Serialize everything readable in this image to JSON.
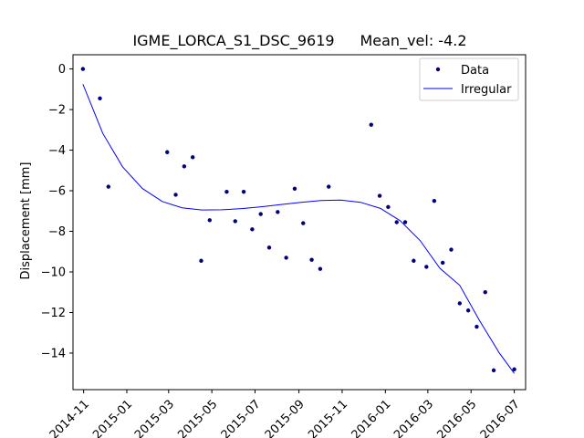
{
  "chart_data": {
    "type": "scatter",
    "title": "IGME_LORCA_S1_DSC_9619",
    "subtitle": "Mean_vel: -4.2",
    "xlabel": "",
    "ylabel": "Displacement [mm]",
    "xlim": [
      "2014-10-17",
      "2016-07-17"
    ],
    "ylim": [
      -15.8,
      0.7
    ],
    "grid": false,
    "legend_position": "top-right",
    "x_ticks": [
      "2014-11",
      "2015-01",
      "2015-03",
      "2015-05",
      "2015-07",
      "2015-09",
      "2015-11",
      "2016-01",
      "2016-03",
      "2016-05",
      "2016-07"
    ],
    "y_ticks": [
      0,
      -2,
      -4,
      -6,
      -8,
      -10,
      -12,
      -14
    ],
    "series": [
      {
        "name": "Data",
        "kind": "points",
        "color": "#000080",
        "x": [
          "2014-10-31",
          "2014-11-24",
          "2014-12-06",
          "2015-02-27",
          "2015-03-11",
          "2015-03-23",
          "2015-04-04",
          "2015-04-16",
          "2015-04-28",
          "2015-05-22",
          "2015-06-03",
          "2015-06-15",
          "2015-06-27",
          "2015-07-09",
          "2015-07-21",
          "2015-08-02",
          "2015-08-14",
          "2015-08-26",
          "2015-09-07",
          "2015-09-19",
          "2015-10-01",
          "2015-10-13",
          "2015-12-12",
          "2015-12-24",
          "2016-01-05",
          "2016-01-17",
          "2016-01-29",
          "2016-02-10",
          "2016-02-28",
          "2016-03-10",
          "2016-03-22",
          "2016-04-03",
          "2016-04-15",
          "2016-04-27",
          "2016-05-09",
          "2016-05-21",
          "2016-06-02",
          "2016-07-01"
        ],
        "y": [
          0.0,
          -1.45,
          -5.8,
          -4.1,
          -6.2,
          -4.8,
          -4.35,
          -9.45,
          -7.45,
          -6.05,
          -7.5,
          -6.05,
          -7.9,
          -7.15,
          -8.8,
          -7.05,
          -9.3,
          -5.9,
          -7.6,
          -9.4,
          -9.85,
          -5.8,
          -2.75,
          -6.25,
          -6.8,
          -7.55,
          -7.55,
          -9.45,
          -9.75,
          -6.5,
          -9.55,
          -8.9,
          -11.55,
          -11.9,
          -12.7,
          -11.0,
          -14.85,
          -14.8
        ]
      },
      {
        "name": "Irregular",
        "kind": "line",
        "color": "#0000ff",
        "x": [
          "2014-10-31",
          "2014-11-28",
          "2014-12-26",
          "2015-01-23",
          "2015-02-20",
          "2015-03-20",
          "2015-04-17",
          "2015-05-15",
          "2015-06-12",
          "2015-07-10",
          "2015-08-07",
          "2015-09-04",
          "2015-10-02",
          "2015-10-30",
          "2015-11-27",
          "2015-12-25",
          "2016-01-22",
          "2016-02-19",
          "2016-03-18",
          "2016-04-15",
          "2016-05-13",
          "2016-06-10",
          "2016-07-01"
        ],
        "y": [
          -0.75,
          -3.17,
          -4.82,
          -5.89,
          -6.53,
          -6.84,
          -6.95,
          -6.94,
          -6.88,
          -6.79,
          -6.68,
          -6.57,
          -6.48,
          -6.46,
          -6.57,
          -6.87,
          -7.48,
          -8.45,
          -9.82,
          -10.66,
          -12.4,
          -14.0,
          -15.0
        ]
      }
    ]
  }
}
